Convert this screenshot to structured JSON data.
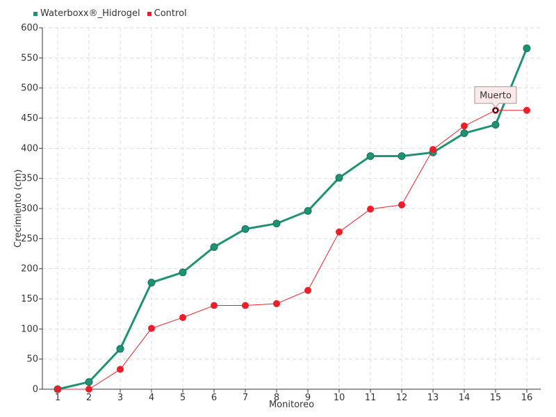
{
  "chart_data": {
    "type": "line",
    "xlabel": "Monitoreo",
    "ylabel": "Crecimiento (cm)",
    "x": [
      1,
      2,
      3,
      4,
      5,
      6,
      7,
      8,
      9,
      10,
      11,
      12,
      13,
      14,
      15,
      16
    ],
    "ylim": [
      0,
      600
    ],
    "yticks": [
      0,
      50,
      100,
      150,
      200,
      250,
      300,
      350,
      400,
      450,
      500,
      550,
      600
    ],
    "grid": true,
    "legend": "top-left",
    "series": [
      {
        "name": "Waterboxx®_Hidrogel",
        "color": "#1f9274",
        "values": [
          0,
          12,
          67,
          177,
          194,
          236,
          266,
          275,
          296,
          351,
          387,
          387,
          393,
          425,
          439,
          566
        ]
      },
      {
        "name": "Control",
        "color": "#e8202a",
        "values": [
          0,
          0,
          33,
          101,
          119,
          139,
          139,
          142,
          164,
          261,
          299,
          306,
          398,
          437,
          463,
          463
        ]
      }
    ],
    "annotation": {
      "text": "Muerto",
      "x": 15,
      "series": "Control",
      "value": 463
    }
  }
}
